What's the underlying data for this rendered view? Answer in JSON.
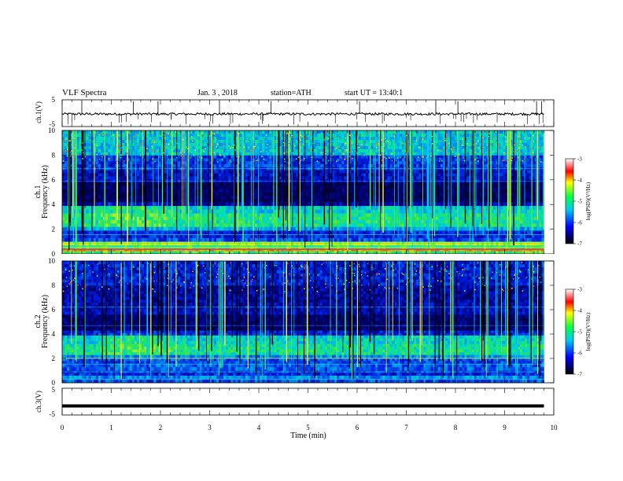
{
  "header": {
    "title": "VLF Spectra",
    "date": "Jan. 3 , 2018",
    "station": "station=ATH",
    "start": "start UT = 13:40:1"
  },
  "chart_data": [
    {
      "type": "line",
      "panel": "ch1-waveform",
      "ylabel": "ch.1(V)",
      "ylim": [
        -5,
        5
      ],
      "yticks": [
        "5",
        "-5"
      ],
      "x_range_min": [
        0,
        9.8
      ],
      "level_v": -0.3,
      "spike_times_min": [
        0.4,
        1.45,
        1.95,
        3.2,
        4.25,
        6.05,
        7.6,
        8.05,
        9.65,
        9.75
      ]
    },
    {
      "type": "heatmap",
      "panel": "ch1-spectrogram",
      "ylabel": "ch.1\nFrequency (kHz)",
      "ylim": [
        0,
        10
      ],
      "yticks": [
        "0",
        "2",
        "4",
        "6",
        "8",
        "10"
      ],
      "xlim": [
        0,
        10
      ],
      "colorbar": {
        "label": "log(PSD)(V²/Hz)",
        "range": [
          -7,
          -3
        ],
        "ticks": [
          "-3",
          "-4",
          "-5",
          "-6",
          "-7"
        ]
      }
    },
    {
      "type": "heatmap",
      "panel": "ch2-spectrogram",
      "ylabel": "ch.2\nFrequency (kHz)",
      "ylim": [
        0,
        10
      ],
      "yticks": [
        "0",
        "2",
        "4",
        "6",
        "8",
        "10"
      ],
      "xlim": [
        0,
        10
      ],
      "colorbar": {
        "label": "log(PSD)(V²/Hz)",
        "range": [
          -7,
          -3
        ],
        "ticks": [
          "-3",
          "-4",
          "-5",
          "-6",
          "-7"
        ]
      }
    },
    {
      "type": "line",
      "panel": "ch3-waveform",
      "ylabel": "ch.3(V)",
      "ylim": [
        -5,
        5
      ],
      "yticks": [
        "5",
        "-5"
      ],
      "x_range_min": [
        0,
        9.8
      ],
      "level_v": -1.6
    }
  ],
  "xaxis": {
    "label": "Time (min)",
    "ticks": [
      "0",
      "1",
      "2",
      "3",
      "4",
      "5",
      "6",
      "7",
      "8",
      "9",
      "10"
    ]
  },
  "colors": {
    "low": "#000033",
    "blue": "#0022dd",
    "cyan": "#00bbee",
    "green": "#22dd55",
    "yellow": "#ffee22",
    "red": "#ff2222"
  }
}
